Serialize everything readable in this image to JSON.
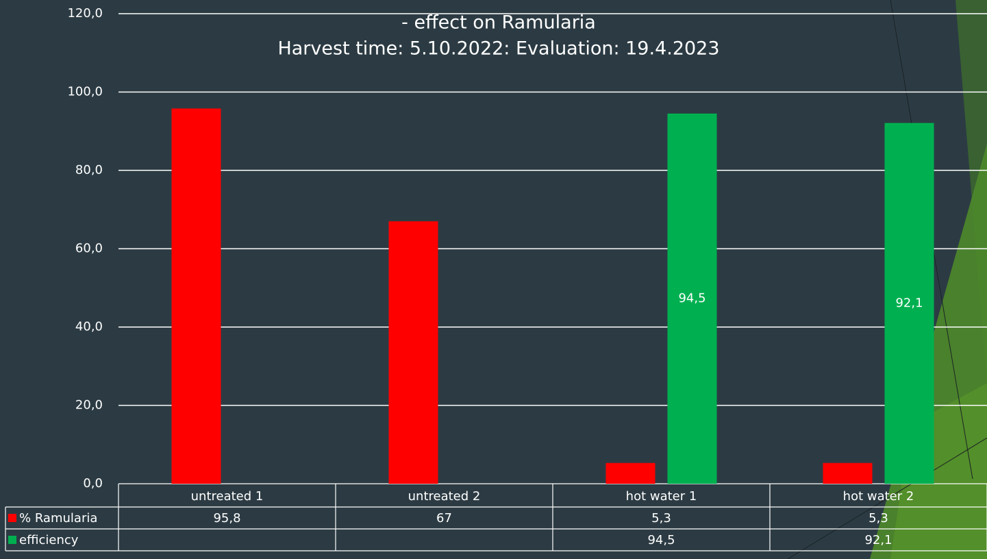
{
  "chart_data": {
    "type": "bar",
    "title": "- effect on Ramularia",
    "subtitle": "Harvest time: 5.10.2022: Evaluation: 19.4.2023",
    "categories": [
      "untreated 1",
      "untreated 2",
      "hot water 1",
      "hot water 2"
    ],
    "series": [
      {
        "name": "% Ramularia",
        "color": "#ff0000",
        "values": [
          95.8,
          67,
          5.3,
          5.3
        ],
        "value_labels": [
          "95,8",
          "67",
          "5,3",
          "5,3"
        ]
      },
      {
        "name": "efficiency",
        "color": "#00b050",
        "values": [
          null,
          null,
          94.5,
          92.1
        ],
        "value_labels": [
          null,
          null,
          "94,5",
          "92,1"
        ]
      }
    ],
    "ylim": [
      0,
      120
    ],
    "yticks": [
      {
        "value": 0,
        "label": "0,0"
      },
      {
        "value": 20,
        "label": "20,0"
      },
      {
        "value": 40,
        "label": "40,0"
      },
      {
        "value": 60,
        "label": "60,0"
      },
      {
        "value": 80,
        "label": "80,0"
      },
      {
        "value": 100,
        "label": "100,0"
      },
      {
        "value": 120,
        "label": "120,0"
      }
    ],
    "grid": true,
    "data_labels_series": 1
  }
}
